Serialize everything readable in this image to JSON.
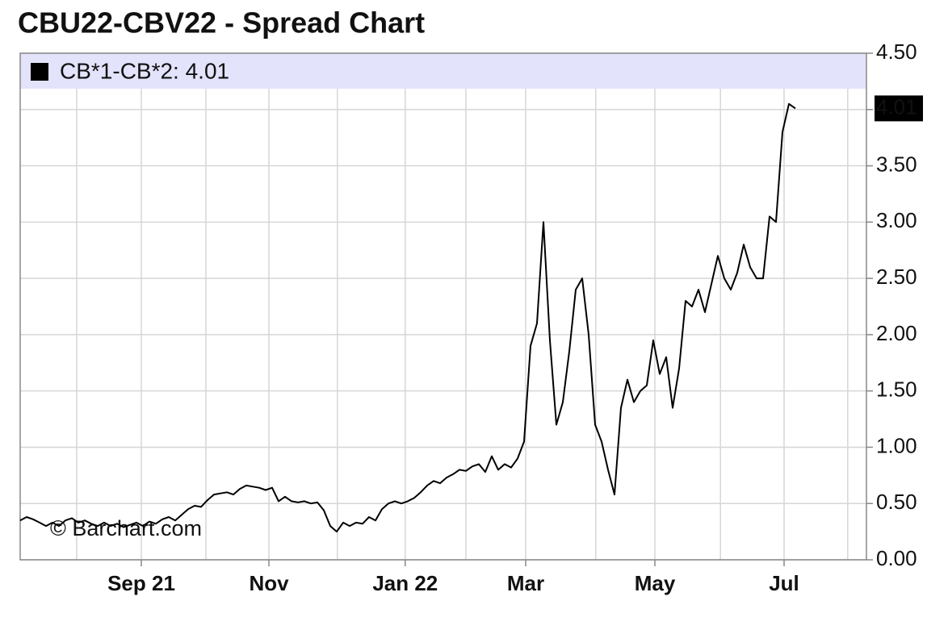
{
  "chart_data": {
    "type": "line",
    "title": "CBU22-CBV22 - Spread Chart",
    "watermark": "© Barchart.com",
    "series": [
      {
        "name": "CB*1-CB*2: 4.01",
        "color": "#000000",
        "values": [
          0.35,
          0.38,
          0.36,
          0.33,
          0.3,
          0.33,
          0.3,
          0.35,
          0.37,
          0.33,
          0.35,
          0.32,
          0.3,
          0.33,
          0.3,
          0.32,
          0.29,
          0.31,
          0.33,
          0.3,
          0.34,
          0.32,
          0.36,
          0.38,
          0.35,
          0.4,
          0.45,
          0.48,
          0.47,
          0.53,
          0.58,
          0.59,
          0.6,
          0.58,
          0.63,
          0.66,
          0.65,
          0.64,
          0.62,
          0.64,
          0.52,
          0.56,
          0.52,
          0.51,
          0.52,
          0.5,
          0.51,
          0.44,
          0.3,
          0.25,
          0.33,
          0.3,
          0.33,
          0.32,
          0.38,
          0.35,
          0.45,
          0.5,
          0.52,
          0.5,
          0.52,
          0.55,
          0.6,
          0.66,
          0.7,
          0.68,
          0.73,
          0.76,
          0.8,
          0.79,
          0.83,
          0.85,
          0.78,
          0.92,
          0.8,
          0.85,
          0.82,
          0.9,
          1.05,
          1.9,
          2.1,
          3.0,
          1.95,
          1.2,
          1.4,
          1.85,
          2.4,
          2.5,
          2.0,
          1.2,
          1.05,
          0.8,
          0.58,
          1.35,
          1.6,
          1.4,
          1.5,
          1.55,
          1.95,
          1.65,
          1.8,
          1.35,
          1.7,
          2.3,
          2.25,
          2.4,
          2.2,
          2.45,
          2.7,
          2.5,
          2.4,
          2.55,
          2.8,
          2.6,
          2.5,
          2.5,
          3.05,
          3.0,
          3.8,
          4.05,
          4.01
        ]
      }
    ],
    "xlim": [
      0,
      131
    ],
    "xticks": [
      {
        "value": 8.75,
        "label": null
      },
      {
        "value": 18.75,
        "label": "Sep 21"
      },
      {
        "value": 28.75,
        "label": null
      },
      {
        "value": 38.5,
        "label": "Nov"
      },
      {
        "value": 49.1,
        "label": null
      },
      {
        "value": 59.6,
        "label": "Jan 22"
      },
      {
        "value": 69,
        "label": null
      },
      {
        "value": 78.25,
        "label": "Mar"
      },
      {
        "value": 89.1,
        "label": null
      },
      {
        "value": 98.25,
        "label": "May"
      },
      {
        "value": 108.4,
        "label": null
      },
      {
        "value": 118.25,
        "label": "Jul"
      },
      {
        "value": 128.1,
        "label": null
      }
    ],
    "ylim": [
      0,
      4.5
    ],
    "yticks": [
      {
        "value": 0,
        "label": "0.00"
      },
      {
        "value": 0.5,
        "label": "0.50"
      },
      {
        "value": 1,
        "label": "1.00"
      },
      {
        "value": 1.5,
        "label": "1.50"
      },
      {
        "value": 2,
        "label": "2.00"
      },
      {
        "value": 2.5,
        "label": "2.50"
      },
      {
        "value": 3,
        "label": "3.00"
      },
      {
        "value": 3.5,
        "label": "3.50"
      },
      {
        "value": 4,
        "label": "4.00"
      },
      {
        "value": 4.5,
        "label": "4.50"
      }
    ],
    "grid": true
  }
}
